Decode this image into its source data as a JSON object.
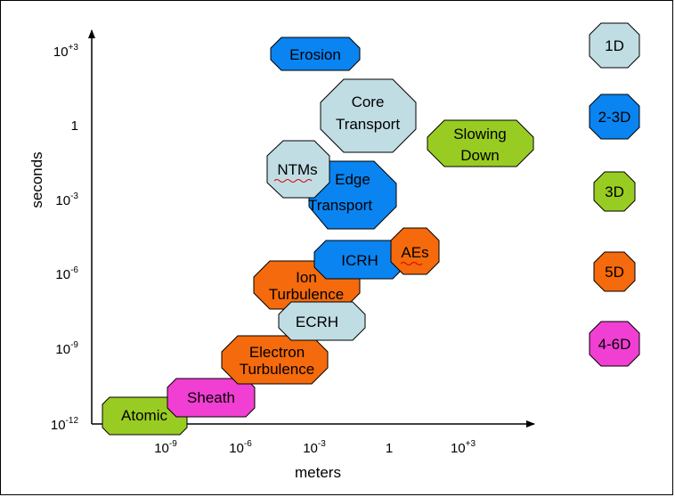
{
  "axes": {
    "x_label": "meters",
    "y_label": "seconds",
    "x_ticks": [
      {
        "base": "10",
        "exp": "-9"
      },
      {
        "base": "10",
        "exp": "-6"
      },
      {
        "base": "10",
        "exp": "-3"
      },
      {
        "base": "1",
        "exp": ""
      },
      {
        "base": "10",
        "exp": "+3"
      }
    ],
    "y_ticks": [
      {
        "base": "10",
        "exp": "+3"
      },
      {
        "base": "1",
        "exp": ""
      },
      {
        "base": "10",
        "exp": "-3"
      },
      {
        "base": "10",
        "exp": "-6"
      },
      {
        "base": "10",
        "exp": "-9"
      },
      {
        "base": "10",
        "exp": "-12"
      }
    ]
  },
  "colors": {
    "d1": "#c0dde3",
    "d23": "#0a84f0",
    "d3": "#99cc22",
    "d5": "#f46a0c",
    "d46": "#f03fd2"
  },
  "regions": [
    {
      "id": "atomic",
      "lines": [
        "Atomic"
      ],
      "dim": "3D",
      "fill": "#99cc22"
    },
    {
      "id": "sheath",
      "lines": [
        "Sheath"
      ],
      "dim": "4-6D",
      "fill": "#f03fd2"
    },
    {
      "id": "electron-turbulence",
      "lines": [
        "Electron",
        "Turbulence"
      ],
      "dim": "5D",
      "fill": "#f46a0c"
    },
    {
      "id": "ecrh",
      "lines": [
        "ECRH"
      ],
      "dim": "1D",
      "fill": "#c0dde3"
    },
    {
      "id": "ion-turbulence",
      "lines": [
        "Ion",
        "Turbulence"
      ],
      "dim": "5D",
      "fill": "#f46a0c"
    },
    {
      "id": "icrh",
      "lines": [
        "ICRH"
      ],
      "dim": "2-3D",
      "fill": "#0a84f0"
    },
    {
      "id": "aes",
      "lines": [
        "AEs"
      ],
      "dim": "5D",
      "fill": "#f46a0c"
    },
    {
      "id": "edge-transport",
      "lines": [
        "Edge",
        "Transport"
      ],
      "dim": "2-3D",
      "fill": "#0a84f0"
    },
    {
      "id": "ntms",
      "lines": [
        "NTMs"
      ],
      "dim": "1D",
      "fill": "#c0dde3"
    },
    {
      "id": "core-transport",
      "lines": [
        "Core",
        "Transport"
      ],
      "dim": "1D",
      "fill": "#c0dde3"
    },
    {
      "id": "slowing-down",
      "lines": [
        "Slowing",
        "Down"
      ],
      "dim": "3D",
      "fill": "#99cc22"
    },
    {
      "id": "erosion",
      "lines": [
        "Erosion"
      ],
      "dim": "2-3D",
      "fill": "#0a84f0"
    }
  ],
  "legend": [
    {
      "label": "1D",
      "fill": "#c0dde3"
    },
    {
      "label": "2-3D",
      "fill": "#0a84f0"
    },
    {
      "label": "3D",
      "fill": "#99cc22"
    },
    {
      "label": "5D",
      "fill": "#f46a0c"
    },
    {
      "label": "4-6D",
      "fill": "#f03fd2"
    }
  ]
}
